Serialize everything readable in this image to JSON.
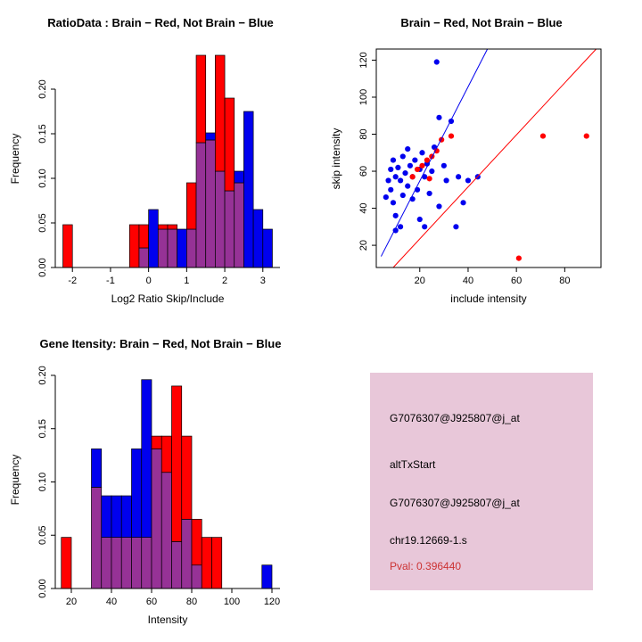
{
  "colors": {
    "red": "#FF0000",
    "blue": "#0000EE",
    "overlap": "#963296",
    "axis": "#000000",
    "info_bg": "#E8C7D9",
    "pval_text": "#CC3333"
  },
  "chart_data": [
    {
      "id": "hist_ratio",
      "type": "bar",
      "title": "RatioData : Brain − Red, Not Brain − Blue",
      "xlabel": "Log2 Ratio Skip/Include",
      "ylabel": "Frequency",
      "legend": [
        {
          "label": "Brain",
          "color": "red"
        },
        {
          "label": "Not Brain",
          "color": "blue"
        }
      ],
      "xlim": [
        -2.45,
        3.45
      ],
      "ylim": [
        0,
        0.245
      ],
      "bin_width": 0.25,
      "xticks": [
        {
          "v": -2,
          "label": "-2"
        },
        {
          "v": -1,
          "label": "-1"
        },
        {
          "v": 0,
          "label": "0"
        },
        {
          "v": 1,
          "label": "1"
        },
        {
          "v": 2,
          "label": "2"
        },
        {
          "v": 3,
          "label": "3"
        }
      ],
      "yticks": [
        {
          "v": 0.0,
          "label": "0.00"
        },
        {
          "v": 0.05,
          "label": "0.05"
        },
        {
          "v": 0.1,
          "label": "0.10"
        },
        {
          "v": 0.15,
          "label": "0.15"
        },
        {
          "v": 0.2,
          "label": "0.20"
        }
      ],
      "bins": [
        {
          "x": -2.25,
          "red": 0.048,
          "blue": 0
        },
        {
          "x": -0.5,
          "red": 0.048,
          "blue": 0
        },
        {
          "x": -0.25,
          "red": 0.048,
          "blue": 0.022
        },
        {
          "x": 0.0,
          "red": 0,
          "blue": 0.065
        },
        {
          "x": 0.25,
          "red": 0.048,
          "blue": 0.043
        },
        {
          "x": 0.5,
          "red": 0.048,
          "blue": 0.043
        },
        {
          "x": 0.75,
          "red": 0,
          "blue": 0.043
        },
        {
          "x": 1.0,
          "red": 0.095,
          "blue": 0.043
        },
        {
          "x": 1.25,
          "red": 0.238,
          "blue": 0.14
        },
        {
          "x": 1.5,
          "red": 0.143,
          "blue": 0.151
        },
        {
          "x": 1.75,
          "red": 0.238,
          "blue": 0.108
        },
        {
          "x": 2.0,
          "red": 0.19,
          "blue": 0.086
        },
        {
          "x": 2.25,
          "red": 0.095,
          "blue": 0.108
        },
        {
          "x": 2.5,
          "red": 0,
          "blue": 0.175
        },
        {
          "x": 2.75,
          "red": 0,
          "blue": 0.065
        },
        {
          "x": 3.0,
          "red": 0,
          "blue": 0.043
        }
      ]
    },
    {
      "id": "scatter",
      "type": "scatter",
      "title": "Brain − Red, Not Brain − Blue",
      "xlabel": "include intensity",
      "ylabel": "skip intensity",
      "xlim": [
        2,
        95
      ],
      "ylim": [
        8,
        126
      ],
      "xticks": [
        {
          "v": 20,
          "label": "20"
        },
        {
          "v": 40,
          "label": "40"
        },
        {
          "v": 60,
          "label": "60"
        },
        {
          "v": 80,
          "label": "80"
        }
      ],
      "yticks": [
        {
          "v": 20,
          "label": "20"
        },
        {
          "v": 40,
          "label": "40"
        },
        {
          "v": 60,
          "label": "60"
        },
        {
          "v": 80,
          "label": "80"
        },
        {
          "v": 100,
          "label": "100"
        },
        {
          "v": 120,
          "label": "120"
        }
      ],
      "blue_points": [
        [
          6,
          46
        ],
        [
          7,
          55
        ],
        [
          8,
          61
        ],
        [
          8,
          50
        ],
        [
          9,
          43
        ],
        [
          9,
          66
        ],
        [
          10,
          57
        ],
        [
          10,
          36
        ],
        [
          10,
          28
        ],
        [
          11,
          62
        ],
        [
          12,
          55
        ],
        [
          12,
          30
        ],
        [
          13,
          68
        ],
        [
          13,
          47
        ],
        [
          14,
          59
        ],
        [
          15,
          52
        ],
        [
          15,
          72
        ],
        [
          16,
          63
        ],
        [
          17,
          45
        ],
        [
          17,
          57
        ],
        [
          18,
          66
        ],
        [
          19,
          50
        ],
        [
          20,
          61
        ],
        [
          20,
          34
        ],
        [
          21,
          70
        ],
        [
          22,
          57
        ],
        [
          22,
          30
        ],
        [
          23,
          64
        ],
        [
          24,
          48
        ],
        [
          25,
          60
        ],
        [
          26,
          73
        ],
        [
          27,
          119
        ],
        [
          28,
          89
        ],
        [
          28,
          41
        ],
        [
          30,
          63
        ],
        [
          31,
          55
        ],
        [
          33,
          87
        ],
        [
          35,
          30
        ],
        [
          36,
          57
        ],
        [
          38,
          43
        ],
        [
          40,
          55
        ],
        [
          44,
          57
        ]
      ],
      "red_points": [
        [
          17,
          57
        ],
        [
          19,
          61
        ],
        [
          21,
          63
        ],
        [
          23,
          66
        ],
        [
          24,
          56
        ],
        [
          25,
          68
        ],
        [
          27,
          71
        ],
        [
          29,
          77
        ],
        [
          33,
          79
        ],
        [
          61,
          13
        ],
        [
          71,
          79
        ],
        [
          89,
          79
        ]
      ],
      "blue_line": [
        [
          4,
          14
        ],
        [
          48,
          126
        ]
      ],
      "red_line": [
        [
          9,
          8
        ],
        [
          93,
          126
        ]
      ]
    },
    {
      "id": "hist_gene",
      "type": "bar",
      "title": "Gene Itensity: Brain − Red, Not Brain − Blue",
      "xlabel": "Intensity",
      "ylabel": "Frequency",
      "legend": [
        {
          "label": "Brain",
          "color": "red"
        },
        {
          "label": "Not Brain",
          "color": "blue"
        }
      ],
      "xlim": [
        12,
        124
      ],
      "ylim": [
        0,
        0.205
      ],
      "bin_width": 5,
      "xticks": [
        {
          "v": 20,
          "label": "20"
        },
        {
          "v": 40,
          "label": "40"
        },
        {
          "v": 60,
          "label": "60"
        },
        {
          "v": 80,
          "label": "80"
        },
        {
          "v": 100,
          "label": "100"
        },
        {
          "v": 120,
          "label": "120"
        }
      ],
      "yticks": [
        {
          "v": 0.0,
          "label": "0.00"
        },
        {
          "v": 0.05,
          "label": "0.05"
        },
        {
          "v": 0.1,
          "label": "0.10"
        },
        {
          "v": 0.15,
          "label": "0.15"
        },
        {
          "v": 0.2,
          "label": "0.20"
        }
      ],
      "bins": [
        {
          "x": 15,
          "red": 0.048,
          "blue": 0
        },
        {
          "x": 30,
          "red": 0.095,
          "blue": 0.131
        },
        {
          "x": 35,
          "red": 0.048,
          "blue": 0.087
        },
        {
          "x": 40,
          "red": 0.048,
          "blue": 0.087
        },
        {
          "x": 45,
          "red": 0.048,
          "blue": 0.087
        },
        {
          "x": 50,
          "red": 0.048,
          "blue": 0.131
        },
        {
          "x": 55,
          "red": 0.048,
          "blue": 0.196
        },
        {
          "x": 60,
          "red": 0.143,
          "blue": 0.131
        },
        {
          "x": 65,
          "red": 0.143,
          "blue": 0.109
        },
        {
          "x": 70,
          "red": 0.19,
          "blue": 0.044
        },
        {
          "x": 75,
          "red": 0.143,
          "blue": 0.065
        },
        {
          "x": 80,
          "red": 0.065,
          "blue": 0.022
        },
        {
          "x": 85,
          "red": 0.048,
          "blue": 0
        },
        {
          "x": 90,
          "red": 0.048,
          "blue": 0
        },
        {
          "x": 115,
          "red": 0,
          "blue": 0.022
        }
      ]
    }
  ],
  "info_panel": {
    "lines": [
      "G7076307@J925807@j_at",
      "altTxStart",
      "G7076307@J925807@j_at",
      "chr19.12669-1.s"
    ],
    "pval": "Pval: 0.396440"
  }
}
